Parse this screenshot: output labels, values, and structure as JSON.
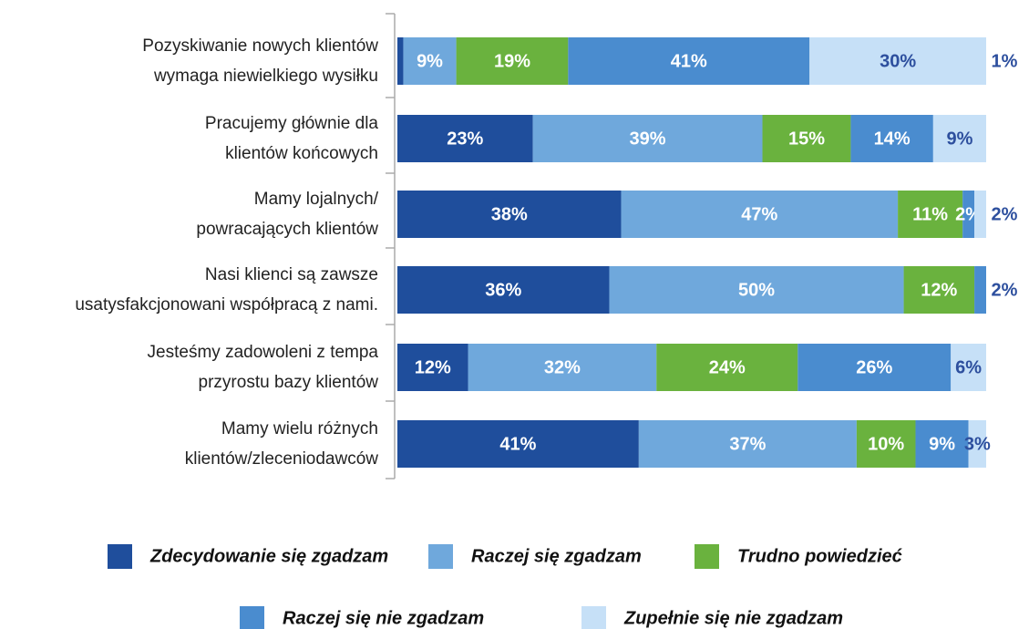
{
  "chart_data": {
    "type": "stacked-bar-horizontal",
    "categories": [
      "Pozyskiwanie nowych klientów\nwymaga niewielkiego wysiłku",
      "Pracujemy głównie dla\nklientów końcowych",
      "Mamy lojalnych/\npowracających klientów",
      "Nasi klienci są zawsze\nusatysfakcjonowani współpracą z nami.",
      "Jesteśmy zadowoleni z tempa\nprzyrostu bazy klientów",
      "Mamy wielu różnych\nklientów/zleceniodawców"
    ],
    "series": [
      {
        "name": "Zdecydowanie się zgadzam",
        "color": "#1f4e9c",
        "values": [
          1,
          23,
          38,
          36,
          12,
          41
        ],
        "value_labels": [
          "1%",
          "23%",
          "38%",
          "36%",
          "12%",
          "41%"
        ]
      },
      {
        "name": "Raczej się zgadzam",
        "color": "#6fa8dc",
        "values": [
          9,
          39,
          47,
          50,
          32,
          37
        ],
        "value_labels": [
          "9%",
          "39%",
          "47%",
          "50%",
          "32%",
          "37%"
        ]
      },
      {
        "name": "Trudno powiedzieć",
        "color": "#6ab23e",
        "values": [
          19,
          15,
          11,
          12,
          24,
          10
        ],
        "value_labels": [
          "19%",
          "15%",
          "11%",
          "12%",
          "24%",
          "10%"
        ]
      },
      {
        "name": "Raczej się nie zgadzam",
        "color": "#4a8ccf",
        "values": [
          41,
          14,
          2,
          2,
          26,
          9
        ],
        "value_labels": [
          "41%",
          "14%",
          "2%",
          "2%",
          "26%",
          "9%"
        ]
      },
      {
        "name": "Zupełnie się nie zgadzam",
        "color": "#c6e0f7",
        "values": [
          30,
          9,
          2,
          null,
          6,
          3
        ],
        "value_labels": [
          "30%",
          "9%",
          "2%",
          null,
          "6%",
          "3%"
        ]
      }
    ],
    "xlim": [
      0,
      100
    ]
  }
}
